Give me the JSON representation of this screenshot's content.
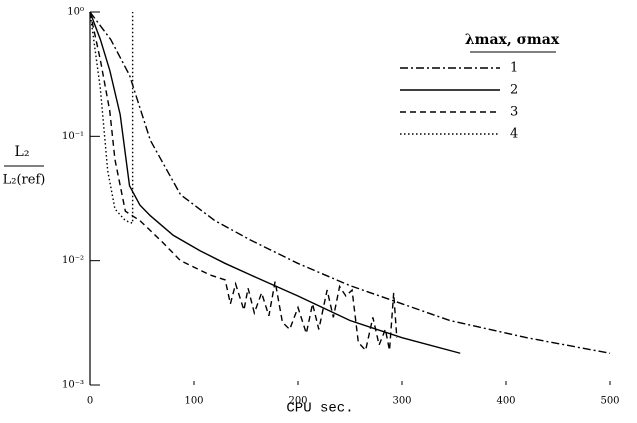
{
  "chart_data": {
    "type": "line",
    "x_label": "CPU sec.",
    "y_label": {
      "numerator": "L₂",
      "denominator": "L₂(ref)"
    },
    "legend_title": "λmax, σmax",
    "legend": "upper right",
    "log_y": true,
    "grid": false,
    "xlim": [
      0,
      500
    ],
    "xticks": [
      0,
      100,
      200,
      300,
      400,
      500
    ],
    "ylim": [
      0.001,
      1
    ],
    "yticks": [
      {
        "value": 1,
        "label": "10⁰"
      },
      {
        "value": 0.1,
        "label": "10⁻¹"
      },
      {
        "value": 0.01,
        "label": "10⁻²"
      },
      {
        "value": 0.001,
        "label": "10⁻³"
      }
    ],
    "series": [
      {
        "name": "1",
        "color": "#000000",
        "style": "dashdot",
        "x": [
          0,
          20,
          38,
          58,
          87,
          120,
          154,
          200,
          250,
          300,
          346,
          420,
          500
        ],
        "values": [
          1,
          0.6,
          0.31,
          0.093,
          0.034,
          0.021,
          0.0147,
          0.0095,
          0.0063,
          0.0045,
          0.0033,
          0.0024,
          0.0018
        ]
      },
      {
        "name": "2",
        "color": "#000000",
        "style": "solid",
        "x": [
          0,
          10,
          19,
          29,
          38,
          48,
          58,
          80,
          106,
          130,
          154,
          200,
          250,
          300,
          356
        ],
        "values": [
          1,
          0.6,
          0.34,
          0.15,
          0.04,
          0.028,
          0.023,
          0.016,
          0.012,
          0.0095,
          0.0077,
          0.0052,
          0.0033,
          0.0024,
          0.0018
        ]
      },
      {
        "name": "3",
        "color": "#000000",
        "style": "dashed",
        "x": [
          0,
          10,
          19,
          24,
          34,
          48,
          70,
          87,
          115,
          130,
          135,
          140,
          148,
          152,
          158,
          165,
          172,
          178,
          185,
          192,
          200,
          208,
          214,
          220,
          228,
          234,
          240,
          246,
          252,
          258,
          265,
          272,
          278,
          284,
          288,
          292,
          295
        ],
        "values": [
          1,
          0.41,
          0.16,
          0.065,
          0.025,
          0.021,
          0.014,
          0.01,
          0.0077,
          0.007,
          0.0045,
          0.0065,
          0.004,
          0.006,
          0.0038,
          0.0055,
          0.0036,
          0.0068,
          0.0032,
          0.0028,
          0.0042,
          0.0026,
          0.0045,
          0.0028,
          0.0058,
          0.0035,
          0.0062,
          0.0052,
          0.0058,
          0.0022,
          0.0019,
          0.0035,
          0.0021,
          0.0028,
          0.0019,
          0.0055,
          0.0024
        ]
      },
      {
        "name": "4",
        "color": "#000000",
        "style": "dotted",
        "x": [
          0,
          10,
          17,
          24,
          34,
          41,
          41
        ],
        "values": [
          1,
          0.24,
          0.053,
          0.026,
          0.021,
          0.02,
          1
        ]
      }
    ]
  }
}
